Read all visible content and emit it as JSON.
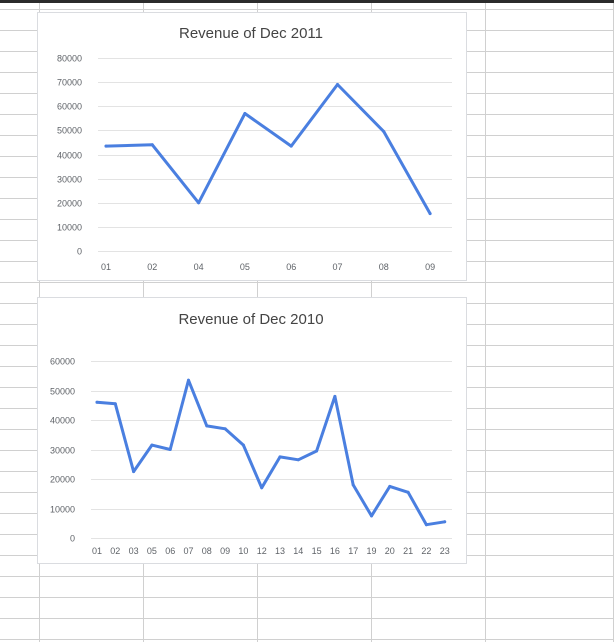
{
  "colors": {
    "series_line": "#4a7fe0",
    "gridline": "#e3e3e3",
    "sheet_cell_border": "#d0d0d0",
    "header_bar": "#2b2b2b"
  },
  "chart_data": [
    {
      "type": "line",
      "title": "Revenue of Dec 2011",
      "categories": [
        "01",
        "02",
        "04",
        "05",
        "06",
        "07",
        "08",
        "09"
      ],
      "series": [
        {
          "values": [
            43500,
            44000,
            20000,
            57000,
            43500,
            69000,
            49500,
            15500
          ]
        }
      ],
      "ylim": [
        0,
        80000
      ],
      "yticks": [
        "0",
        "10000",
        "20000",
        "30000",
        "40000",
        "50000",
        "60000",
        "70000",
        "80000"
      ],
      "xlabel": "",
      "ylabel": "",
      "grid": true,
      "legend": "none"
    },
    {
      "type": "line",
      "title": "Revenue of Dec 2010",
      "categories": [
        "01",
        "02",
        "03",
        "05",
        "06",
        "07",
        "08",
        "09",
        "10",
        "12",
        "13",
        "14",
        "15",
        "16",
        "17",
        "19",
        "20",
        "21",
        "22",
        "23"
      ],
      "series": [
        {
          "values": [
            46000,
            45500,
            22500,
            31500,
            30000,
            53500,
            38000,
            37000,
            31500,
            17000,
            27500,
            26500,
            29500,
            48000,
            18000,
            7500,
            17500,
            15500,
            4500,
            5500
          ]
        }
      ],
      "ylim": [
        0,
        60000
      ],
      "yticks": [
        "0",
        "10000",
        "20000",
        "30000",
        "40000",
        "50000",
        "60000"
      ],
      "xlabel": "",
      "ylabel": "",
      "grid": true,
      "legend": "none"
    }
  ]
}
